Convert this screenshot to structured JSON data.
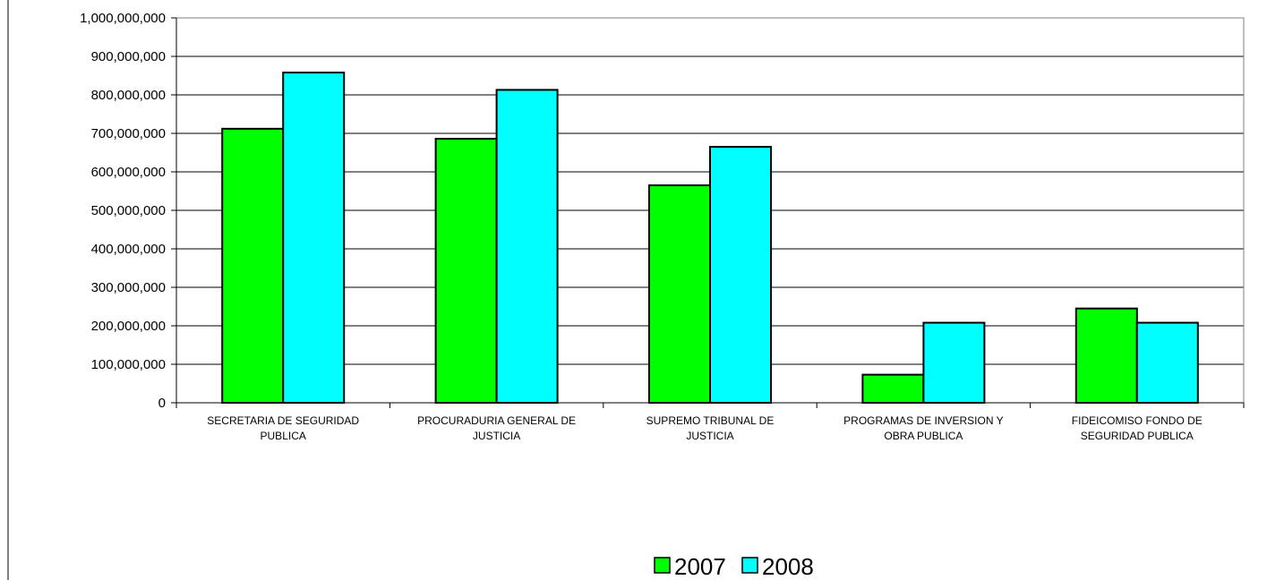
{
  "chart_data": {
    "type": "bar",
    "title": "",
    "xlabel": "",
    "ylabel": "",
    "categories": [
      [
        "SECRETARIA DE SEGURIDAD",
        "PUBLICA"
      ],
      [
        "PROCURADURIA GENERAL DE",
        "JUSTICIA"
      ],
      [
        "SUPREMO TRIBUNAL DE",
        "JUSTICIA"
      ],
      [
        "PROGRAMAS DE INVERSION Y",
        "OBRA PUBLICA"
      ],
      [
        "FIDEICOMISO FONDO DE",
        "SEGURIDAD PUBLICA"
      ]
    ],
    "series": [
      {
        "name": "2007",
        "color": "#00ff00",
        "values": [
          712000000,
          686000000,
          565000000,
          73000000,
          245000000
        ]
      },
      {
        "name": "2008",
        "color": "#00ffff",
        "values": [
          858000000,
          813000000,
          665000000,
          208000000,
          208000000
        ]
      }
    ],
    "ylim": [
      0,
      1000000000
    ],
    "yticks": [
      "0",
      "100,000,000",
      "200,000,000",
      "300,000,000",
      "400,000,000",
      "500,000,000",
      "600,000,000",
      "700,000,000",
      "800,000,000",
      "900,000,000",
      "1,000,000,000"
    ],
    "grid": true,
    "legend_position": "bottom"
  }
}
